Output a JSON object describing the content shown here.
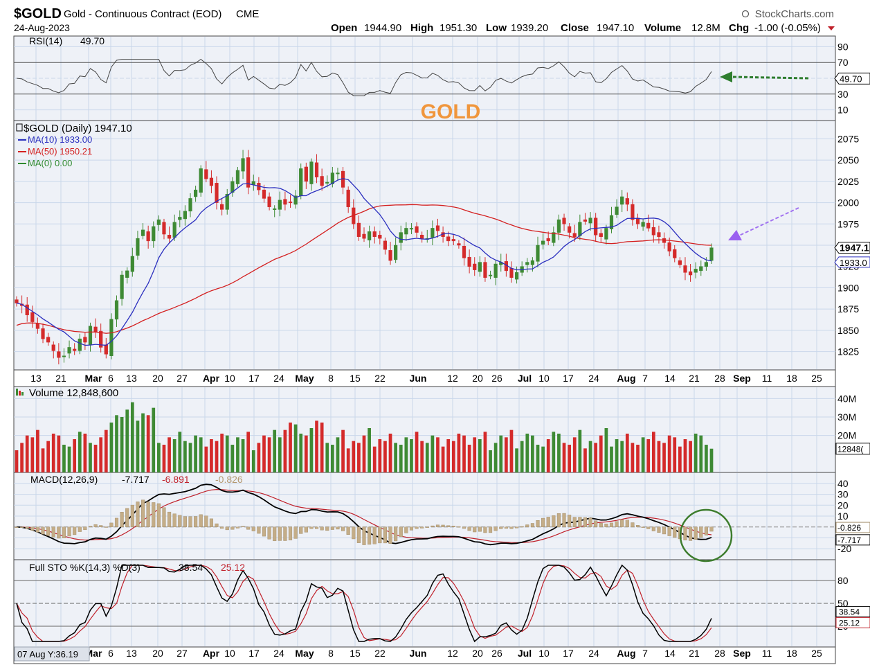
{
  "header": {
    "symbol": "$GOLD",
    "name": "Gold - Continuous Contract (EOD)",
    "exchange": "CME",
    "date": "24-Aug-2023",
    "source": "StockCharts.com",
    "open_label": "Open",
    "open": "1944.90",
    "high_label": "High",
    "high": "1951.30",
    "low_label": "Low",
    "low": "1939.20",
    "close_label": "Close",
    "close": "1947.10",
    "volume_label": "Volume",
    "volume": "12.8M",
    "chg_label": "Chg",
    "chg": "-1.00 (-0.05%)"
  },
  "annotation": {
    "title": "GOLD"
  },
  "rsi_panel": {
    "label": "RSI(14)",
    "value": "49.70",
    "ticks": [
      90,
      70,
      50,
      30,
      10
    ],
    "current_tag": "49.70"
  },
  "price_panel": {
    "label": "$GOLD (Daily) 1947.10",
    "legend": [
      {
        "label": "MA(10) 1933.00",
        "color": "#2b2fbf"
      },
      {
        "label": "MA(50) 1950.21",
        "color": "#d42020"
      },
      {
        "label": "MA(0) 0.00",
        "color": "#2f8a2f"
      }
    ],
    "ticks": [
      2075,
      2050,
      2025,
      2000,
      1975,
      1950,
      1925,
      1900,
      1875,
      1850,
      1825
    ],
    "close_tag": "1947.1",
    "ma10_tag": "1933.0"
  },
  "x_axis": {
    "labels": [
      {
        "t": "13",
        "b": false
      },
      {
        "t": "21",
        "b": false
      },
      {
        "t": "Mar",
        "b": true
      },
      {
        "t": "6",
        "b": false
      },
      {
        "t": "13",
        "b": false
      },
      {
        "t": "20",
        "b": false
      },
      {
        "t": "27",
        "b": false
      },
      {
        "t": "Apr",
        "b": true
      },
      {
        "t": "10",
        "b": false
      },
      {
        "t": "17",
        "b": false
      },
      {
        "t": "24",
        "b": false
      },
      {
        "t": "May",
        "b": true
      },
      {
        "t": "8",
        "b": false
      },
      {
        "t": "15",
        "b": false
      },
      {
        "t": "22",
        "b": false
      },
      {
        "t": "Jun",
        "b": true
      },
      {
        "t": "12",
        "b": false
      },
      {
        "t": "20",
        "b": false
      },
      {
        "t": "26",
        "b": false
      },
      {
        "t": "Jul",
        "b": true
      },
      {
        "t": "10",
        "b": false
      },
      {
        "t": "17",
        "b": false
      },
      {
        "t": "24",
        "b": false
      },
      {
        "t": "Aug",
        "b": true
      },
      {
        "t": "7",
        "b": false
      },
      {
        "t": "14",
        "b": false
      },
      {
        "t": "21",
        "b": false
      },
      {
        "t": "28",
        "b": false
      },
      {
        "t": "Sep",
        "b": true
      },
      {
        "t": "11",
        "b": false
      },
      {
        "t": "18",
        "b": false
      },
      {
        "t": "25",
        "b": false
      }
    ]
  },
  "volume_panel": {
    "label": "Volume 12,848,600",
    "ticks": [
      "40M",
      "30M",
      "20M"
    ],
    "current_tag": "12848("
  },
  "macd_panel": {
    "label": "MACD(12,26,9)",
    "macd": "-7.717",
    "signal": "-6.891",
    "hist": "-0.826",
    "ticks": [
      40,
      30,
      20,
      10,
      -20
    ],
    "hist_tag": "-0.826",
    "macd_tag": "-7.717"
  },
  "sto_panel": {
    "label": "Full STO %K(14,3) %D(3)",
    "k": "38.54",
    "d": "25.12",
    "ticks": [
      80,
      50,
      20
    ],
    "k_tag": "38.54",
    "d_tag": "25.12"
  },
  "crosshair_readout": "07 Aug Y:36.19",
  "colors": {
    "up": "#3e8a34",
    "down": "#d42a2a",
    "ma10": "#2b2fbf",
    "ma50": "#d42020",
    "grid": "#c9d7ea",
    "panel_bg": "#eef1f7",
    "hist": "#c4ad88",
    "annotation": "#f0963c"
  },
  "chart_data": {
    "type": "candlestick",
    "period": "daily, Feb 2023 - Aug 24 2023",
    "ohlc_close_path": [
      1882,
      1879,
      1868,
      1860,
      1852,
      1840,
      1836,
      1826,
      1818,
      1820,
      1830,
      1826,
      1840,
      1836,
      1855,
      1848,
      1830,
      1822,
      1863,
      1885,
      1915,
      1920,
      1937,
      1958,
      1968,
      1955,
      1972,
      1980,
      1963,
      1958,
      1977,
      1983,
      1990,
      2005,
      2015,
      2040,
      2028,
      2020,
      2000,
      1992,
      2010,
      2025,
      2038,
      2052,
      2018,
      2025,
      2015,
      2005,
      1995,
      1993,
      2003,
      1998,
      2000,
      2008,
      2040,
      2025,
      2048,
      2030,
      2020,
      2024,
      2035,
      2035,
      2018,
      1995,
      1975,
      1960,
      1958,
      1966,
      1960,
      1958,
      1945,
      1932,
      1950,
      1965,
      1970,
      1970,
      1965,
      1958,
      1958,
      1970,
      1967,
      1960,
      1955,
      1955,
      1950,
      1935,
      1925,
      1921,
      1930,
      1912,
      1915,
      1928,
      1930,
      1920,
      1912,
      1918,
      1925,
      1930,
      1932,
      1950,
      1955,
      1955,
      1965,
      1980,
      1975,
      1965,
      1960,
      1977,
      1978,
      1982,
      1962,
      1960,
      1970,
      1985,
      1995,
      2007,
      1998,
      1980,
      1975,
      1977,
      1970,
      1962,
      1960,
      1953,
      1943,
      1935,
      1927,
      1918,
      1915,
      1922,
      1925,
      1930,
      1947
    ],
    "ma10_last": 1933.0,
    "ma50_last": 1950.21,
    "volume_last": 12848600,
    "rsi_last": 49.7,
    "macd_last": -7.717,
    "signal_last": -6.891,
    "hist_last": -0.826,
    "sto_k_last": 38.54,
    "sto_d_last": 25.12,
    "y_price_range": [
      1810,
      2090
    ]
  }
}
